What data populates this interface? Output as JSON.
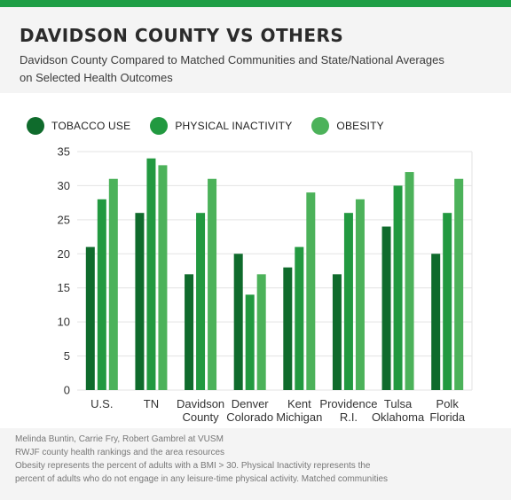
{
  "header": {
    "title": "DAVIDSON COUNTY VS OTHERS",
    "subtitle_line1": "Davidson County Compared to Matched Communities and State/National Averages",
    "subtitle_line2": "on Selected Health Outcomes"
  },
  "colors": {
    "accent": "#1e9e45",
    "tobacco": "#0f6b2c",
    "inactivity": "#229940",
    "obesity": "#4cb25a",
    "grid": "#e3e3e3",
    "panel": "#f4f4f4"
  },
  "chart_data": {
    "type": "bar",
    "categories": [
      [
        "U.S."
      ],
      [
        "TN"
      ],
      [
        "Davidson",
        "County"
      ],
      [
        "Denver",
        "Colorado"
      ],
      [
        "Kent",
        "Michigan"
      ],
      [
        "Providence",
        "R.I."
      ],
      [
        "Tulsa",
        "Oklahoma"
      ],
      [
        "Polk",
        "Florida"
      ]
    ],
    "series": [
      {
        "name": "TOBACCO USE",
        "values": [
          21,
          26,
          17,
          20,
          18,
          17,
          24,
          20
        ]
      },
      {
        "name": "PHYSICAL INACTIVITY",
        "values": [
          28,
          34,
          26,
          14,
          21,
          26,
          30,
          26
        ]
      },
      {
        "name": "OBESITY",
        "values": [
          31,
          33,
          31,
          17,
          29,
          28,
          32,
          31
        ]
      }
    ],
    "yticks": [
      0,
      5,
      10,
      15,
      20,
      25,
      30,
      35
    ],
    "ylim": [
      0,
      35
    ],
    "grid": true,
    "legend_position": "top-left"
  },
  "footer": {
    "line1": "Melinda Buntin, Carrie Fry, Robert Gambrel at VUSM",
    "line2": "RWJF county health rankings and the area resources",
    "line3": "Obesity represents the percent of adults with a BMI > 30. Physical Inactivity represents the",
    "line4": "percent of adults who do not engage in any leisure-time physical activity. Matched communities"
  }
}
